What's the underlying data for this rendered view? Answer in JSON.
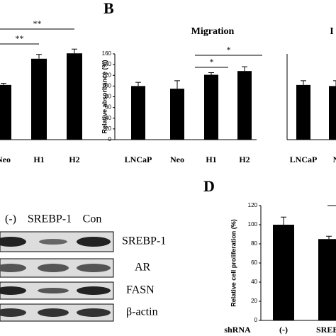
{
  "labels": {
    "b": "B",
    "d": "D"
  },
  "chart_data": [
    {
      "type": "bar",
      "categories": [
        "Neo",
        "H1",
        "H2"
      ],
      "values": [
        102,
        151,
        161
      ],
      "errors": [
        3,
        8,
        8
      ],
      "ylim": [
        0,
        160
      ],
      "color": "#000000",
      "annotations": [
        "**",
        "**"
      ]
    },
    {
      "type": "bar",
      "title": "Migration",
      "y_label": "Relative absorbance (%)",
      "categories": [
        "LNCaP",
        "Neo",
        "H1",
        "H2"
      ],
      "values": [
        100,
        95,
        121,
        128
      ],
      "errors": [
        7,
        15,
        4,
        8
      ],
      "ylim": [
        0,
        160
      ],
      "yticks": [
        0,
        20,
        40,
        60,
        80,
        100,
        120,
        140,
        160
      ],
      "color": "#000000",
      "annotations": [
        "*",
        "*"
      ]
    },
    {
      "type": "bar",
      "title": "I",
      "categories": [
        "LNCaP",
        "N"
      ],
      "values": [
        102,
        100
      ],
      "errors": [
        8,
        10
      ],
      "ylim": [
        0,
        160
      ],
      "color": "#000000"
    },
    {
      "type": "bar",
      "y_label": "Relative cell proliferation (%)",
      "x_label": "shRNA",
      "categories": [
        "(-)",
        "SREBI"
      ],
      "values": [
        100,
        85
      ],
      "errors": [
        8,
        3
      ],
      "ylim": [
        0,
        120
      ],
      "yticks": [
        0,
        20,
        40,
        60,
        80,
        100,
        120
      ],
      "color": "#000000"
    }
  ],
  "blot": {
    "lanes": [
      "(-)",
      "SREBP-1",
      "Con"
    ],
    "rows": [
      "SREBP-1",
      "AR",
      "FASN",
      "β-actin"
    ]
  }
}
